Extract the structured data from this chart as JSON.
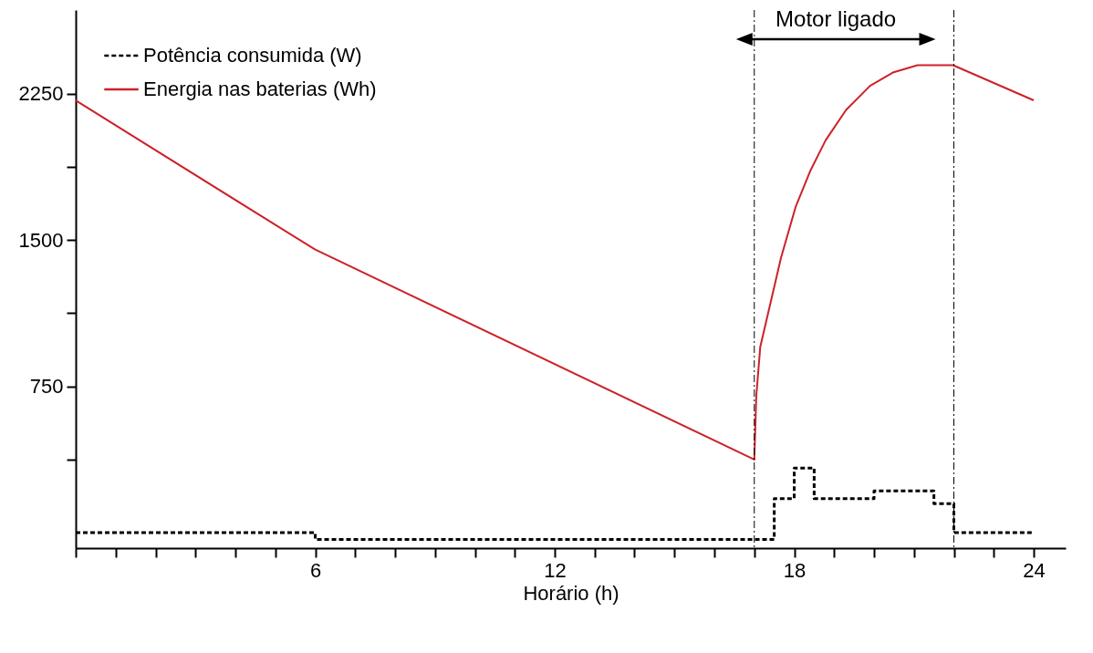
{
  "chart_data": {
    "type": "line",
    "xlabel": "Horário (h)",
    "xlim": [
      0,
      24.8
    ],
    "ylim": [
      -80,
      2680
    ],
    "xticks": [
      {
        "value": 0,
        "label": null
      },
      {
        "value": 1,
        "label": null
      },
      {
        "value": 2,
        "label": null
      },
      {
        "value": 3,
        "label": null
      },
      {
        "value": 4,
        "label": null
      },
      {
        "value": 5,
        "label": null
      },
      6,
      {
        "value": 7,
        "label": null
      },
      {
        "value": 8,
        "label": null
      },
      {
        "value": 9,
        "label": null
      },
      {
        "value": 10,
        "label": null
      },
      {
        "value": 11,
        "label": null
      },
      12,
      {
        "value": 13,
        "label": null
      },
      {
        "value": 14,
        "label": null
      },
      {
        "value": 15,
        "label": null
      },
      {
        "value": 16,
        "label": null
      },
      {
        "value": 17,
        "label": null
      },
      18,
      {
        "value": 19,
        "label": null
      },
      {
        "value": 20,
        "label": null
      },
      {
        "value": 21,
        "label": null
      },
      {
        "value": 22,
        "label": null
      },
      {
        "value": 23,
        "label": null
      },
      24
    ],
    "yticks": [
      {
        "value": 375,
        "label": null
      },
      750,
      {
        "value": 1125,
        "label": null
      },
      1500,
      {
        "value": 1875,
        "label": null
      },
      2250
    ],
    "grid": false,
    "legend": "top left",
    "series": [
      {
        "name": "Potência consumida (W)",
        "type": "step",
        "line_style": "dashed",
        "color": "#000000",
        "x": [
          0,
          6,
          17.5,
          18,
          18.5,
          20,
          21.5,
          22,
          24
        ],
        "values": [
          0,
          -35,
          174,
          331,
          174,
          213,
          148,
          0,
          0
        ]
      },
      {
        "name": "Energia nas baterias (Wh)",
        "type": "line",
        "line_style": "solid",
        "color": "#cc2229",
        "x": [
          0,
          6,
          17,
          17.05,
          17.15,
          17.67,
          18.04,
          18.41,
          18.79,
          19.3,
          19.9,
          20.49,
          21.09,
          21.98,
          24
        ],
        "values": [
          2216,
          1451,
          374,
          700,
          953,
          1410,
          1673,
          1858,
          2013,
          2168,
          2291,
          2361,
          2397,
          2397,
          2217
        ]
      }
    ],
    "ref_lines": [
      {
        "axis": "x",
        "value": 17,
        "line_style": "dashdot"
      },
      {
        "axis": "x",
        "value": 22,
        "line_style": "dashdot"
      }
    ],
    "annotations": [
      "Motor ligado"
    ]
  }
}
